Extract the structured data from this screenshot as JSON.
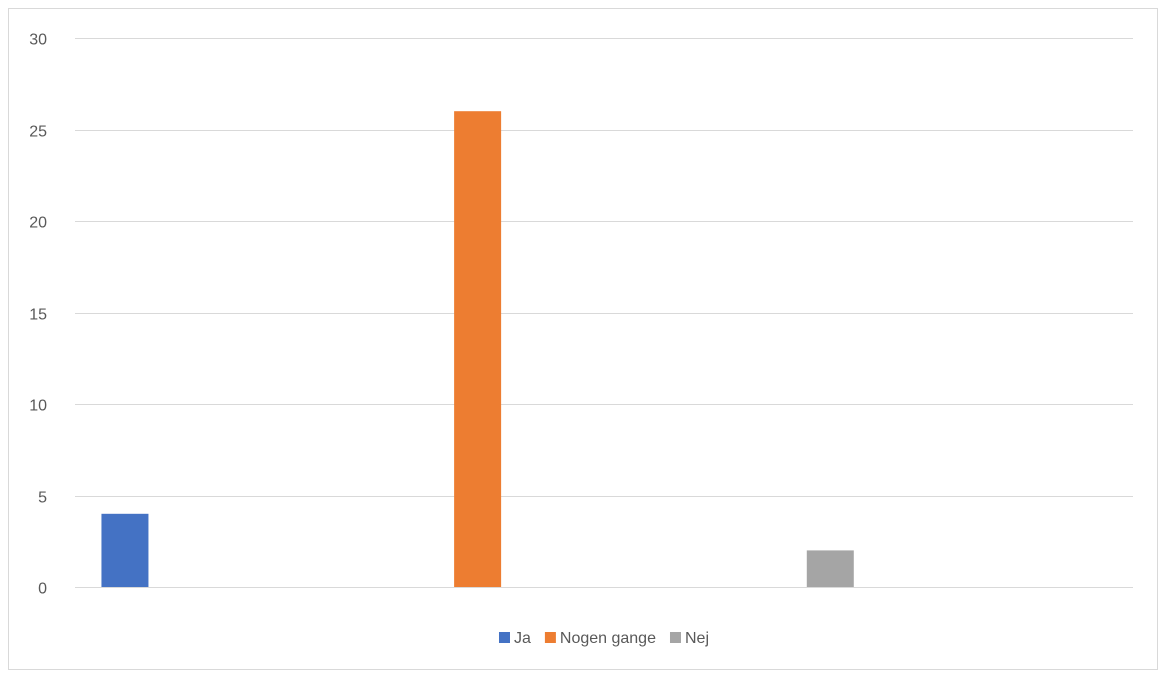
{
  "chart_data": {
    "type": "bar",
    "title": "",
    "xlabel": "",
    "ylabel": "",
    "categories": [
      ""
    ],
    "series": [
      {
        "name": "Ja",
        "values": [
          4
        ],
        "color": "#4472C4"
      },
      {
        "name": "Nogen gange",
        "values": [
          26
        ],
        "color": "#ED7D31"
      },
      {
        "name": "Nej",
        "values": [
          2
        ],
        "color": "#A5A5A5"
      }
    ],
    "ylim": [
      0,
      30
    ],
    "yticks": [
      0,
      5,
      10,
      15,
      20,
      25,
      30
    ],
    "grid": true,
    "legend_position": "bottom"
  }
}
